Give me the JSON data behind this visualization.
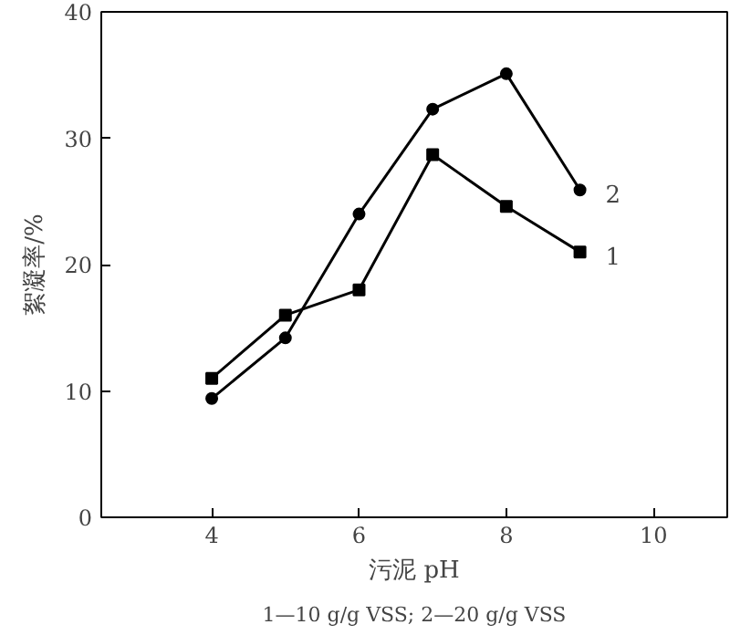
{
  "chart_data": {
    "type": "line",
    "xlabel": "污泥 pH",
    "ylabel": "絮凝率/%",
    "x": [
      4,
      5,
      6,
      7,
      8,
      9
    ],
    "series": [
      {
        "name": "1",
        "color": "#000000",
        "marker": "square",
        "values": [
          11,
          16,
          18,
          28.7,
          24.6,
          21
        ]
      },
      {
        "name": "2",
        "color": "#000000",
        "marker": "circle",
        "values": [
          9.4,
          14.2,
          24,
          32.3,
          35.1,
          25.9
        ]
      }
    ],
    "xlim": [
      2.5,
      11
    ],
    "ylim": [
      0,
      40
    ],
    "xticks": [
      4,
      6,
      8,
      10
    ],
    "yticks": [
      0,
      10,
      20,
      30,
      40
    ],
    "grid": false,
    "annotations": [
      "1—10 g/g VSS; 2—20 g/g VSS"
    ]
  }
}
